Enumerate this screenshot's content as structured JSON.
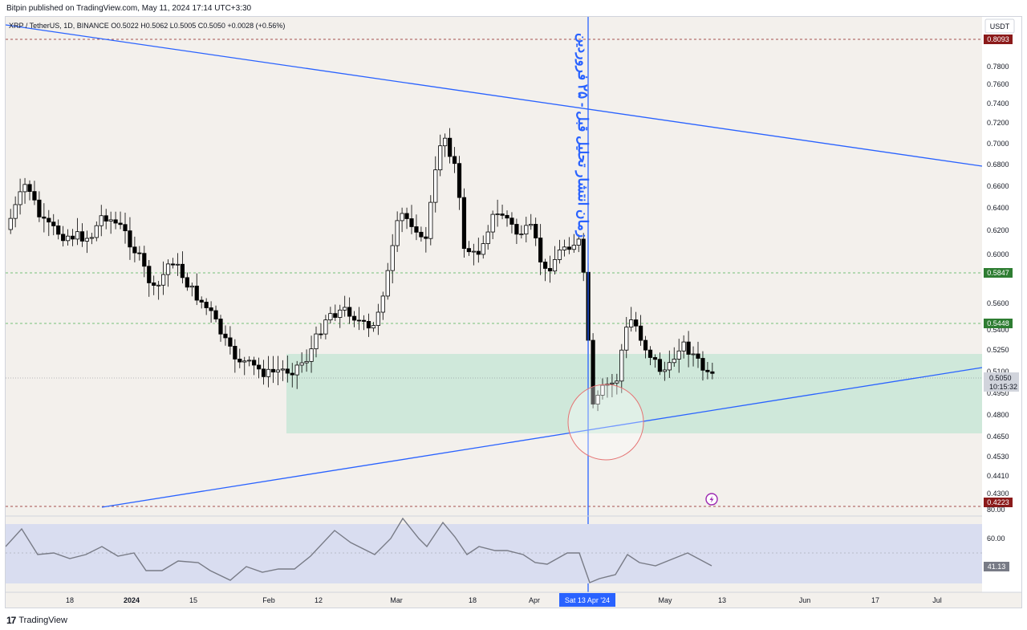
{
  "header": {
    "publisher": "Bitpin published on TradingView.com, May 11, 2024 17:14 UTC+3:30",
    "symbol_info": "XRP / TetherUS, 1D, BINANCE  O0.5022  H0.5062  L0.5005  C0.5050  +0.0028 (+0.56%)",
    "currency": "USDT"
  },
  "footer": {
    "logo_text": "TradingView"
  },
  "chart_data": {
    "type": "candlestick",
    "y_axis": {
      "ticks": [
        "0.7800",
        "0.7600",
        "0.7400",
        "0.7200",
        "0.7000",
        "0.6800",
        "0.6600",
        "0.6400",
        "0.6200",
        "0.6000",
        "0.5600",
        "0.5400",
        "0.5250",
        "0.5100",
        "0.4950",
        "0.4800",
        "0.4650",
        "0.4530",
        "0.4410",
        "0.4300"
      ],
      "scale": "log"
    },
    "x_axis": {
      "ticks": [
        "18",
        "2024",
        "15",
        "Feb",
        "12",
        "Mar",
        "18",
        "Apr",
        "May",
        "13",
        "Jun",
        "17",
        "Jul"
      ],
      "cursor_label": "Sat 13 Apr '24"
    },
    "price_labels": {
      "top": "0.8093",
      "resistance_1": "0.5847",
      "resistance_2": "0.5448",
      "bottom": "0.4223",
      "current": "0.5050",
      "countdown": "10:15:32"
    },
    "annotation": "زمان انتشار تحلیل قبل - ۲۵ فروردین",
    "rsi": {
      "levels": [
        "80.00",
        "60.00"
      ],
      "current": "41.13"
    },
    "colors": {
      "background": "#f3f0ec",
      "up_candle": "#ffffff",
      "down_candle": "#000000",
      "trendline": "#2962ff",
      "support_zone": "#c8e6d7",
      "resistance_line": "#4caf50",
      "extreme_line": "#8b1a1a",
      "rsi_band": "#d9ddf0",
      "rsi_line": "#787b86",
      "circle": "#e57373"
    }
  }
}
